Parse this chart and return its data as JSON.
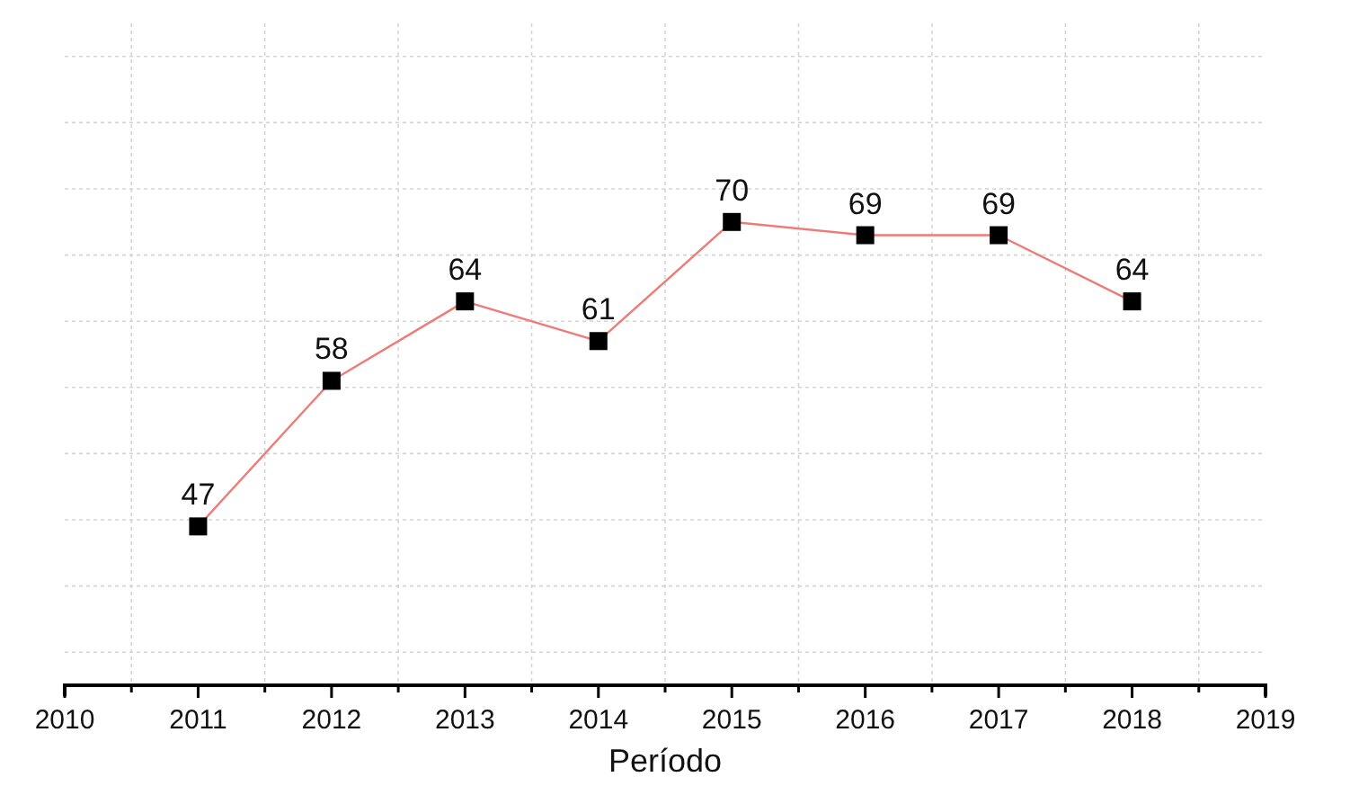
{
  "chart_data": {
    "type": "line",
    "xlabel": "Período",
    "x": [
      2011,
      2012,
      2013,
      2014,
      2015,
      2016,
      2017,
      2018
    ],
    "series": [
      {
        "color": "#ee7b78",
        "values": [
          47,
          58,
          64,
          61,
          70,
          69,
          69,
          64
        ]
      }
    ],
    "xlim": [
      2010,
      2019
    ],
    "xticks": [
      2010,
      {
        "value": 2010.5,
        "label": null
      },
      2011,
      {
        "value": 2011.5,
        "label": null
      },
      2012,
      {
        "value": 2012.5,
        "label": null
      },
      2013,
      {
        "value": 2013.5,
        "label": null
      },
      2014,
      {
        "value": 2014.5,
        "label": null
      },
      2015,
      {
        "value": 2015.5,
        "label": null
      },
      2016,
      {
        "value": 2016.5,
        "label": null
      },
      2017,
      {
        "value": 2017.5,
        "label": null
      },
      2018,
      {
        "value": 2018.5,
        "label": null
      },
      2019
    ],
    "ylim": [
      35,
      85
    ],
    "yticks": [
      {
        "value": 37.5,
        "label": null
      },
      {
        "value": 42.5,
        "label": null
      },
      {
        "value": 47.5,
        "label": null
      },
      {
        "value": 52.5,
        "label": null
      },
      {
        "value": 57.5,
        "label": null
      },
      {
        "value": 62.5,
        "label": null
      },
      {
        "value": 67.5,
        "label": null
      },
      {
        "value": 72.5,
        "label": null
      },
      {
        "value": 77.5,
        "label": null
      },
      {
        "value": 82.5,
        "label": null
      }
    ],
    "tick_labels": "x",
    "grid": true,
    "marker": "square",
    "line_style": "solid",
    "data_labels": true
  }
}
